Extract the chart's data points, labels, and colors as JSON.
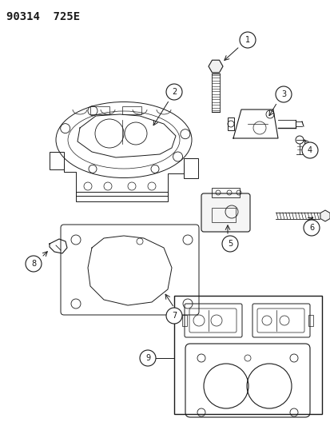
{
  "title": "90314  725E",
  "bg_color": "#ffffff",
  "line_color": "#1a1a1a",
  "fig_width": 4.14,
  "fig_height": 5.33,
  "dpi": 100,
  "header_fontsize": 10,
  "callout_fontsize": 7
}
